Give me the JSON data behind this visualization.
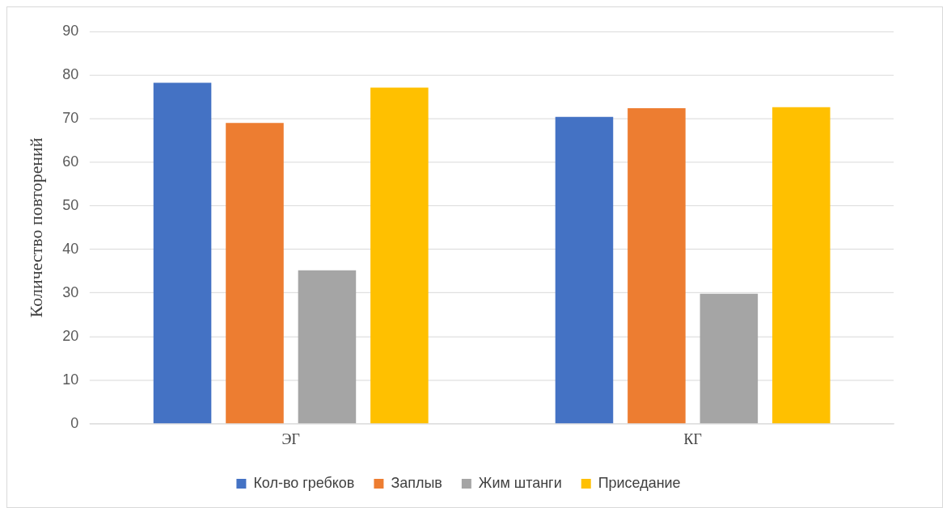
{
  "chart_data": {
    "type": "bar",
    "ylabel": "Количество повторений",
    "categories": [
      "ЭГ",
      "КГ"
    ],
    "series": [
      {
        "name": "Кол-во гребков",
        "color": "#4472c4",
        "values": [
          78.2,
          70.4
        ]
      },
      {
        "name": "Заплыв",
        "color": "#ed7d31",
        "values": [
          69,
          72.4
        ]
      },
      {
        "name": "Жим штанги",
        "color": "#a5a5a5",
        "values": [
          35.2,
          29.8
        ]
      },
      {
        "name": "Приседание",
        "color": "#ffc000",
        "values": [
          77.1,
          72.6
        ]
      }
    ],
    "ylim": [
      0,
      90
    ],
    "yticks": [
      0,
      10,
      20,
      30,
      40,
      50,
      60,
      70,
      80,
      90
    ],
    "grid": "y",
    "legend": "bottom"
  }
}
